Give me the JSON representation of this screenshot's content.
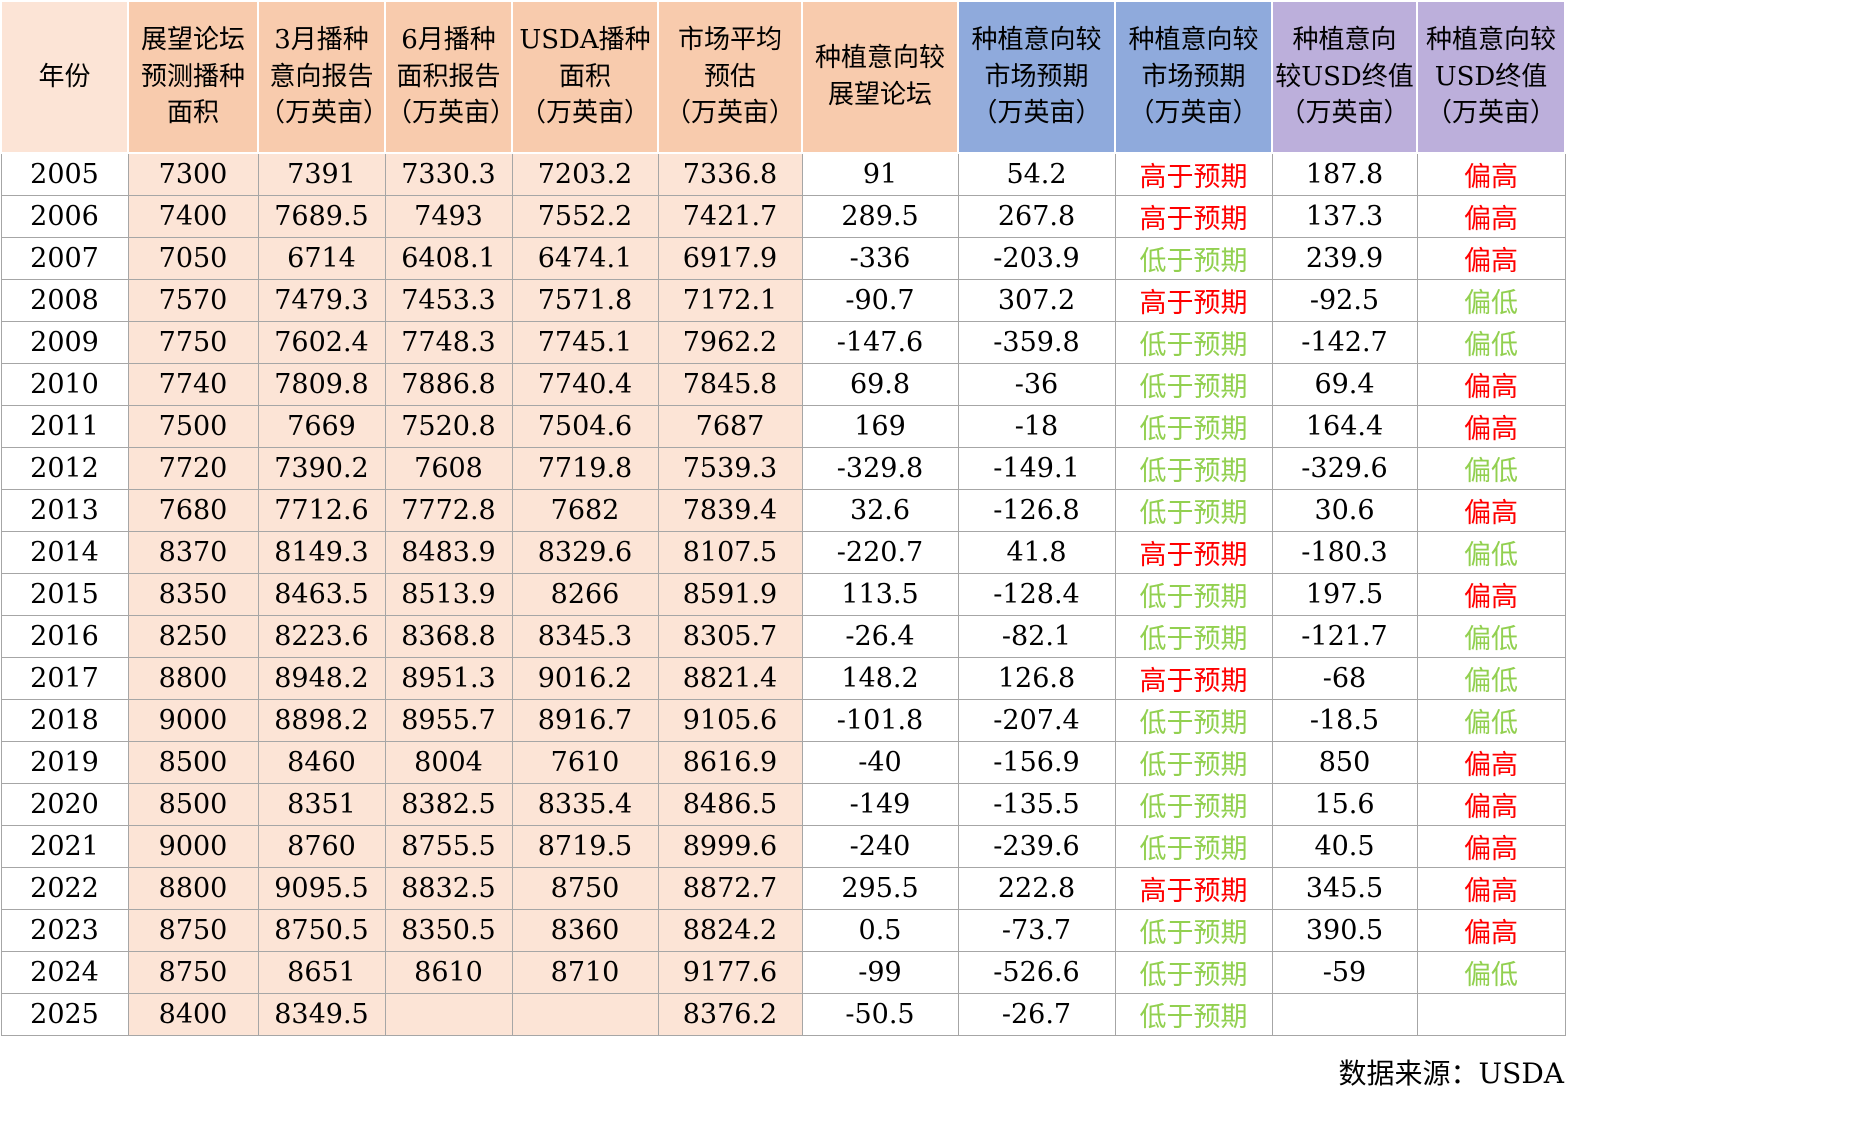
{
  "chart_data": {
    "type": "table",
    "columns": [
      "年份",
      "展望论坛\n预测播种\n面积",
      "3月播种\n意向报告\n（万英亩）",
      "6月播种\n面积报告\n（万英亩）",
      "USDA播种\n面积\n（万英亩）",
      "市场平均\n预估\n（万英亩）",
      "种植意向较\n展望论坛",
      "种植意向较\n市场预期\n（万英亩）",
      "种植意向较\n市场预期\n（万英亩）",
      "种植意向\n较USD终值\n（万英亩）",
      "种植意向较\nUSD终值\n（万英亩）"
    ],
    "rows": [
      [
        "2005",
        "7300",
        "7391",
        "7330.3",
        "7203.2",
        "7336.8",
        "91",
        "54.2",
        "高于预期",
        "187.8",
        "偏高"
      ],
      [
        "2006",
        "7400",
        "7689.5",
        "7493",
        "7552.2",
        "7421.7",
        "289.5",
        "267.8",
        "高于预期",
        "137.3",
        "偏高"
      ],
      [
        "2007",
        "7050",
        "6714",
        "6408.1",
        "6474.1",
        "6917.9",
        "-336",
        "-203.9",
        "低于预期",
        "239.9",
        "偏高"
      ],
      [
        "2008",
        "7570",
        "7479.3",
        "7453.3",
        "7571.8",
        "7172.1",
        "-90.7",
        "307.2",
        "高于预期",
        "-92.5",
        "偏低"
      ],
      [
        "2009",
        "7750",
        "7602.4",
        "7748.3",
        "7745.1",
        "7962.2",
        "-147.6",
        "-359.8",
        "低于预期",
        "-142.7",
        "偏低"
      ],
      [
        "2010",
        "7740",
        "7809.8",
        "7886.8",
        "7740.4",
        "7845.8",
        "69.8",
        "-36",
        "低于预期",
        "69.4",
        "偏高"
      ],
      [
        "2011",
        "7500",
        "7669",
        "7520.8",
        "7504.6",
        "7687",
        "169",
        "-18",
        "低于预期",
        "164.4",
        "偏高"
      ],
      [
        "2012",
        "7720",
        "7390.2",
        "7608",
        "7719.8",
        "7539.3",
        "-329.8",
        "-149.1",
        "低于预期",
        "-329.6",
        "偏低"
      ],
      [
        "2013",
        "7680",
        "7712.6",
        "7772.8",
        "7682",
        "7839.4",
        "32.6",
        "-126.8",
        "低于预期",
        "30.6",
        "偏高"
      ],
      [
        "2014",
        "8370",
        "8149.3",
        "8483.9",
        "8329.6",
        "8107.5",
        "-220.7",
        "41.8",
        "高于预期",
        "-180.3",
        "偏低"
      ],
      [
        "2015",
        "8350",
        "8463.5",
        "8513.9",
        "8266",
        "8591.9",
        "113.5",
        "-128.4",
        "低于预期",
        "197.5",
        "偏高"
      ],
      [
        "2016",
        "8250",
        "8223.6",
        "8368.8",
        "8345.3",
        "8305.7",
        "-26.4",
        "-82.1",
        "低于预期",
        "-121.7",
        "偏低"
      ],
      [
        "2017",
        "8800",
        "8948.2",
        "8951.3",
        "9016.2",
        "8821.4",
        "148.2",
        "126.8",
        "高于预期",
        "-68",
        "偏低"
      ],
      [
        "2018",
        "9000",
        "8898.2",
        "8955.7",
        "8916.7",
        "9105.6",
        "-101.8",
        "-207.4",
        "低于预期",
        "-18.5",
        "偏低"
      ],
      [
        "2019",
        "8500",
        "8460",
        "8004",
        "7610",
        "8616.9",
        "-40",
        "-156.9",
        "低于预期",
        "850",
        "偏高"
      ],
      [
        "2020",
        "8500",
        "8351",
        "8382.5",
        "8335.4",
        "8486.5",
        "-149",
        "-135.5",
        "低于预期",
        "15.6",
        "偏高"
      ],
      [
        "2021",
        "9000",
        "8760",
        "8755.5",
        "8719.5",
        "8999.6",
        "-240",
        "-239.6",
        "低于预期",
        "40.5",
        "偏高"
      ],
      [
        "2022",
        "8800",
        "9095.5",
        "8832.5",
        "8750",
        "8872.7",
        "295.5",
        "222.8",
        "高于预期",
        "345.5",
        "偏高"
      ],
      [
        "2023",
        "8750",
        "8750.5",
        "8350.5",
        "8360",
        "8824.2",
        "0.5",
        "-73.7",
        "低于预期",
        "390.5",
        "偏高"
      ],
      [
        "2024",
        "8750",
        "8651",
        "8610",
        "8710",
        "9177.6",
        "-99",
        "-526.6",
        "低于预期",
        "-59",
        "偏低"
      ],
      [
        "2025",
        "8400",
        "8349.5",
        "",
        "",
        "8376.2",
        "-50.5",
        "-26.7",
        "低于预期",
        "",
        ""
      ]
    ],
    "source_note": "数据来源：USDA"
  },
  "colors": {
    "header_light_peach": "#FCE4D6",
    "header_peach": "#F8CBAD",
    "header_blue": "#8FAADC",
    "header_purple": "#BCAFDB",
    "cell_peach": "#FCE4D6",
    "grid_line": "#A6A6A6",
    "above_red": "#FF0000",
    "below_green": "#92D050"
  }
}
